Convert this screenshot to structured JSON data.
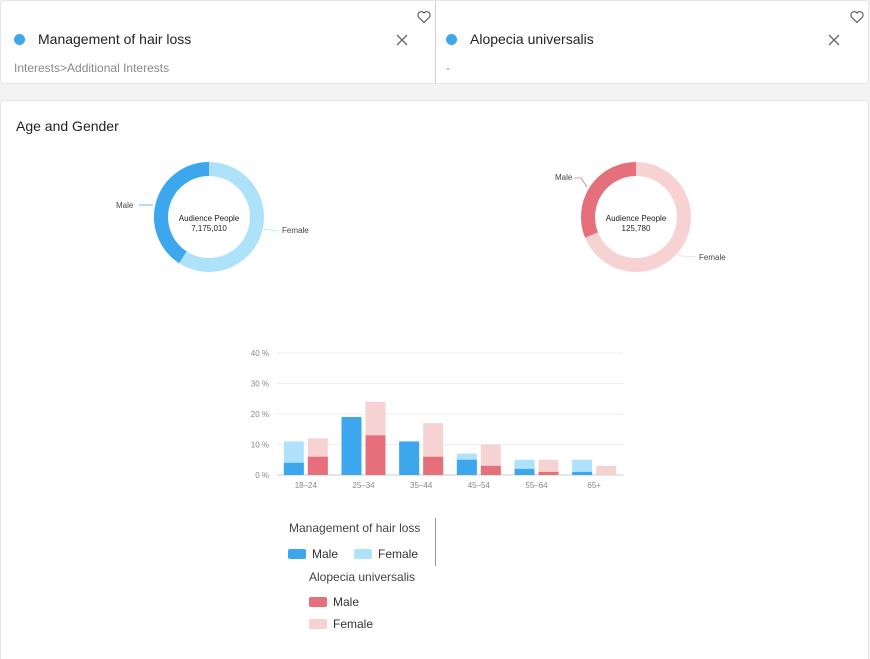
{
  "audiences": [
    {
      "name": "Management of hair loss",
      "path": "Interests>Additional Interests",
      "dot_color": "#3da7ee"
    },
    {
      "name": "Alopecia universalis",
      "path": "-",
      "dot_color": "#3da7ee"
    }
  ],
  "section": {
    "title": "Age and Gender"
  },
  "donuts": [
    {
      "center_title": "Audience People",
      "center_value": "7,175,010",
      "male_label": "Male",
      "female_label": "Female",
      "male_color": "#3da7ee",
      "female_color": "#aee2fa"
    },
    {
      "center_title": "Audience People",
      "center_value": "125,780",
      "male_label": "Male",
      "female_label": "Female",
      "male_color": "#e5707b",
      "female_color": "#f7d2d3"
    }
  ],
  "chart_data": {
    "type": "bar",
    "categories": [
      "18–24",
      "25–34",
      "35–44",
      "45–54",
      "55–64",
      "65+"
    ],
    "y_ticks": [
      "0 %",
      "10 %",
      "20 %",
      "30 %",
      "40 %"
    ],
    "ylim": [
      0,
      40
    ],
    "series": [
      {
        "name": "Management of hair loss",
        "male": [
          4,
          19,
          11,
          5,
          2,
          1
        ],
        "female": [
          11,
          17,
          11,
          7,
          5,
          5
        ],
        "male_color": "#3da7ee",
        "female_color": "#aee2fa"
      },
      {
        "name": "Alopecia universalis",
        "male": [
          6,
          13,
          6,
          3,
          1,
          0
        ],
        "female": [
          12,
          24,
          17,
          10,
          5,
          3
        ],
        "male_color": "#e5707b",
        "female_color": "#f7d2d3"
      }
    ]
  },
  "legend": {
    "groups": [
      {
        "title": "Management of hair loss",
        "male": "Male",
        "female": "Female"
      },
      {
        "title": "Alopecia universalis",
        "male": "Male",
        "female": "Female"
      }
    ]
  }
}
